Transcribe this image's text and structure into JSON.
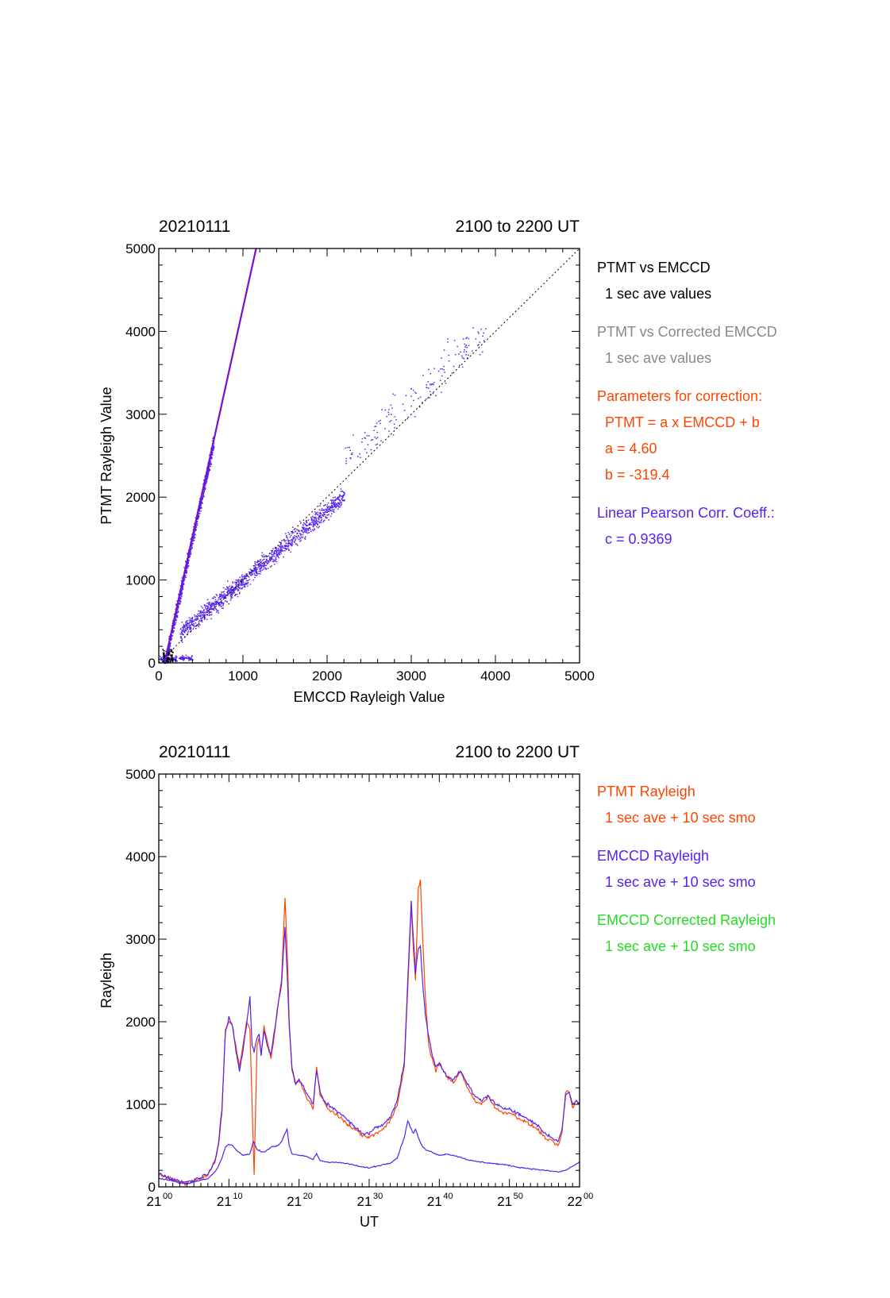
{
  "colors": {
    "ptmt": "#ff4400",
    "emccd": "#5522ee",
    "corrected": "#22dd22",
    "gray": "#888888",
    "axis": "#000000"
  },
  "chart_data": [
    {
      "type": "scatter",
      "title_left": "20210111",
      "title_right": "2100 to 2200 UT",
      "xlabel": "EMCCD Rayleigh Value",
      "ylabel": "PTMT Rayleigh Value",
      "xlim": [
        0,
        5000
      ],
      "ylim": [
        0,
        5000
      ],
      "xticks": [
        "0",
        "1000",
        "2000",
        "3000",
        "4000",
        "5000"
      ],
      "yticks": [
        "0",
        "1000",
        "2000",
        "3000",
        "4000",
        "5000"
      ],
      "annotations": [
        {
          "text": "PTMT vs EMCCD",
          "color": "#000000"
        },
        {
          "text": "1 sec ave values",
          "color": "#000000"
        },
        {
          "text": "PTMT vs Corrected EMCCD",
          "color": "#888888"
        },
        {
          "text": "1 sec ave values",
          "color": "#888888"
        },
        {
          "text": "Parameters for correction:",
          "color": "#ff4400"
        },
        {
          "text": "PTMT = a x EMCCD + b",
          "color": "#ff4400"
        },
        {
          "text": "a = 4.60",
          "color": "#ff4400"
        },
        {
          "text": "b = -319.4",
          "color": "#ff4400"
        },
        {
          "text": "Linear Pearson Corr. Coeff.:",
          "color": "#5522ee"
        },
        {
          "text": "c = 0.9369",
          "color": "#5522ee"
        }
      ],
      "fit": {
        "a": 4.6,
        "b": -319.4
      },
      "identity_line": true,
      "scatter_clusters": [
        {
          "name": "ptmt-vs-emccd",
          "x": [
            60,
            650
          ],
          "slope": 4.6,
          "intercept": -319.4,
          "spread": 160,
          "count": 900
        },
        {
          "name": "ptmt-vs-corrected-emccd",
          "x": [
            250,
            2200
          ],
          "slope": 0.85,
          "intercept": 150,
          "spread": 180,
          "count": 1200
        },
        {
          "name": "high-values",
          "x": [
            2200,
            3900
          ],
          "slope": 0.9,
          "intercept": 500,
          "spread": 400,
          "count": 160
        },
        {
          "name": "low-values",
          "x": [
            0,
            400
          ],
          "slope": 0.0,
          "intercept": 60,
          "spread": 60,
          "count": 150
        }
      ]
    },
    {
      "type": "line",
      "title_left": "20210111",
      "title_right": "2100 to 2200 UT",
      "xlabel": "UT",
      "ylabel": "Rayleigh",
      "xlim": [
        0,
        60
      ],
      "ylim": [
        0,
        5000
      ],
      "xticks": [
        {
          "hh": "21",
          "mm": "00"
        },
        {
          "hh": "21",
          "mm": "10"
        },
        {
          "hh": "21",
          "mm": "20"
        },
        {
          "hh": "21",
          "mm": "30"
        },
        {
          "hh": "21",
          "mm": "40"
        },
        {
          "hh": "21",
          "mm": "50"
        },
        {
          "hh": "22",
          "mm": "00"
        }
      ],
      "yticks": [
        "0",
        "1000",
        "2000",
        "3000",
        "4000",
        "5000"
      ],
      "annotations": [
        {
          "text": "PTMT Rayleigh",
          "color": "#ff4400"
        },
        {
          "text": "1 sec ave + 10 sec smo",
          "color": "#ff4400"
        },
        {
          "text": "EMCCD Rayleigh",
          "color": "#5522ee"
        },
        {
          "text": "1 sec ave + 10 sec smo",
          "color": "#5522ee"
        },
        {
          "text": "EMCCD Corrected Rayleigh",
          "color": "#22dd22"
        },
        {
          "text": "1 sec ave + 10 sec smo",
          "color": "#22dd22"
        }
      ],
      "series": [
        {
          "color": "#ff4400",
          "x": [
            0,
            1,
            2,
            3,
            4,
            5,
            6,
            7,
            8,
            8.5,
            9,
            9.5,
            10,
            10.5,
            11,
            11.5,
            12,
            12.5,
            13,
            13.3,
            13.6,
            14,
            14.3,
            14.6,
            15,
            15.5,
            16,
            16.5,
            17,
            17.5,
            18,
            18.3,
            18.6,
            19,
            19.5,
            20,
            21,
            22,
            22.5,
            23,
            23.5,
            24,
            25,
            26,
            27,
            28,
            29,
            30,
            31,
            32,
            33,
            34,
            35,
            35.5,
            36,
            36.3,
            36.6,
            37,
            37.3,
            37.6,
            38,
            38.5,
            39,
            39.5,
            40,
            41,
            42,
            43,
            44,
            45,
            46,
            47,
            48,
            49,
            50,
            51,
            52,
            53,
            54,
            55,
            56,
            57,
            57.5,
            58,
            58.5,
            59,
            59.5,
            60
          ],
          "y": [
            150,
            120,
            80,
            60,
            40,
            70,
            100,
            150,
            300,
            500,
            900,
            1900,
            2000,
            1950,
            1700,
            1450,
            1700,
            2000,
            1900,
            1000,
            150,
            1700,
            1800,
            1600,
            1950,
            1750,
            1550,
            1850,
            2200,
            2500,
            3500,
            2900,
            2000,
            1400,
            1250,
            1300,
            1100,
            950,
            1450,
            1100,
            1050,
            950,
            900,
            820,
            750,
            700,
            620,
            600,
            650,
            700,
            800,
            1000,
            1450,
            2400,
            3400,
            2900,
            2500,
            3600,
            3700,
            3100,
            2300,
            1700,
            1550,
            1400,
            1500,
            1350,
            1250,
            1400,
            1200,
            1050,
            1000,
            1100,
            950,
            900,
            900,
            850,
            800,
            750,
            700,
            600,
            550,
            500,
            650,
            1150,
            1150,
            950,
            1050,
            1000
          ]
        },
        {
          "color": "#5522ee",
          "x": [
            0,
            1,
            2,
            3,
            4,
            5,
            6,
            7,
            8,
            8.5,
            9,
            9.5,
            10,
            10.5,
            11,
            11.5,
            12,
            12.5,
            13,
            13.3,
            13.6,
            14,
            14.3,
            14.6,
            15,
            15.5,
            16,
            16.5,
            17,
            17.5,
            18,
            18.3,
            18.6,
            19,
            19.5,
            20,
            21,
            22,
            22.5,
            23,
            23.5,
            24,
            25,
            26,
            27,
            28,
            29,
            30,
            31,
            32,
            33,
            34,
            35,
            35.5,
            36,
            36.3,
            36.6,
            37,
            37.3,
            37.6,
            38,
            38.5,
            39,
            39.5,
            40,
            41,
            42,
            43,
            44,
            45,
            46,
            47,
            48,
            49,
            50,
            51,
            52,
            53,
            54,
            55,
            56,
            57,
            57.5,
            58,
            58.5,
            59,
            59.5,
            60
          ],
          "y": [
            160,
            130,
            90,
            70,
            60,
            80,
            120,
            160,
            320,
            520,
            950,
            1850,
            2050,
            1950,
            1650,
            1400,
            1650,
            1950,
            2300,
            1700,
            1650,
            1800,
            1850,
            1600,
            1900,
            1700,
            1600,
            1900,
            2200,
            2450,
            3150,
            2600,
            1950,
            1450,
            1250,
            1300,
            1150,
            1000,
            1400,
            1150,
            1050,
            1000,
            950,
            880,
            800,
            720,
            650,
            650,
            720,
            750,
            850,
            1050,
            1500,
            2500,
            3450,
            3000,
            2600,
            2900,
            2900,
            2500,
            2100,
            1800,
            1600,
            1450,
            1500,
            1350,
            1300,
            1400,
            1250,
            1100,
            1050,
            1100,
            1000,
            950,
            950,
            900,
            850,
            800,
            750,
            650,
            600,
            550,
            700,
            1100,
            1150,
            1000,
            1050,
            1000
          ]
        },
        {
          "color": "#5522ee",
          "x": [
            0,
            1,
            2,
            3,
            4,
            5,
            6,
            7,
            8,
            8.5,
            9,
            9.5,
            10,
            10.5,
            11,
            12,
            13,
            13.5,
            14,
            15,
            16,
            17,
            17.5,
            18,
            18.3,
            18.6,
            19,
            20,
            21,
            22,
            22.5,
            23,
            24,
            25,
            26,
            27,
            28,
            29,
            30,
            31,
            32,
            33,
            34,
            35,
            35.5,
            36,
            36.3,
            36.6,
            37,
            37.5,
            38,
            39,
            40,
            41,
            42,
            43,
            44,
            45,
            46,
            47,
            48,
            49,
            50,
            51,
            52,
            53,
            54,
            55,
            56,
            57,
            58,
            59,
            60
          ],
          "y": [
            100,
            90,
            70,
            50,
            40,
            60,
            80,
            100,
            180,
            250,
            350,
            480,
            520,
            500,
            450,
            380,
            400,
            550,
            450,
            420,
            480,
            500,
            550,
            650,
            700,
            500,
            400,
            380,
            370,
            330,
            400,
            320,
            300,
            300,
            290,
            280,
            260,
            240,
            230,
            250,
            270,
            290,
            350,
            600,
            800,
            700,
            650,
            700,
            600,
            500,
            450,
            420,
            380,
            400,
            380,
            360,
            330,
            310,
            300,
            290,
            280,
            270,
            260,
            240,
            230,
            220,
            210,
            200,
            190,
            180,
            200,
            250,
            300
          ]
        }
      ]
    }
  ]
}
